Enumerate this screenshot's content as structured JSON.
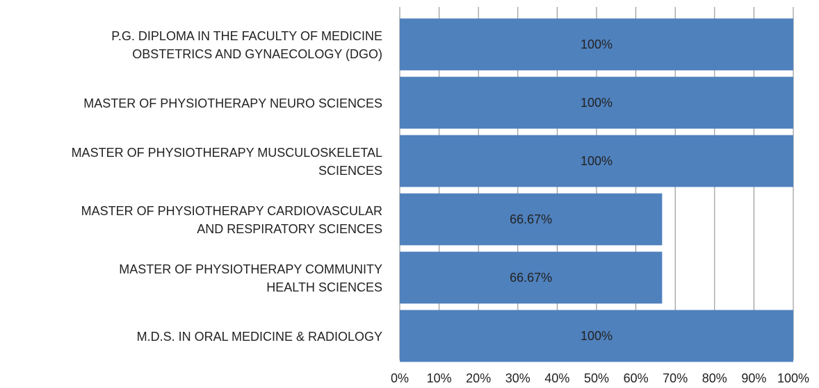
{
  "chart_data": {
    "type": "barh",
    "categories": [
      "P.G. DIPLOMA  IN THE FACULTY OF MEDICINE\nOBSTETRICS AND GYNAECOLOGY (DGO)",
      "MASTER OF PHYSIOTHERAPY  NEURO SCIENCES",
      "MASTER OF PHYSIOTHERAPY  MUSCULOSKELETAL\nSCIENCES",
      "MASTER OF PHYSIOTHERAPY  CARDIOVASCULAR\nAND RESPIRATORY SCIENCES",
      "MASTER OF PHYSIOTHERAPY  COMMUNITY\nHEALTH SCIENCES",
      "M.D.S. IN ORAL MEDICINE & RADIOLOGY"
    ],
    "values": [
      100,
      100,
      100,
      66.67,
      66.67,
      100
    ],
    "value_labels": [
      "100%",
      "100%",
      "100%",
      "66.67%",
      "66.67%",
      "100%"
    ],
    "color": "#4f81bd",
    "xlim": [
      0,
      100
    ],
    "xticks": [
      {
        "value": 0,
        "label": "0%"
      },
      {
        "value": 10,
        "label": "10%"
      },
      {
        "value": 20,
        "label": "20%"
      },
      {
        "value": 30,
        "label": "30%"
      },
      {
        "value": 40,
        "label": "40%"
      },
      {
        "value": 50,
        "label": "50%"
      },
      {
        "value": 60,
        "label": "60%"
      },
      {
        "value": 70,
        "label": "70%"
      },
      {
        "value": 80,
        "label": "80%"
      },
      {
        "value": 90,
        "label": "90%"
      },
      {
        "value": 100,
        "label": "100%"
      }
    ],
    "grid": true
  }
}
